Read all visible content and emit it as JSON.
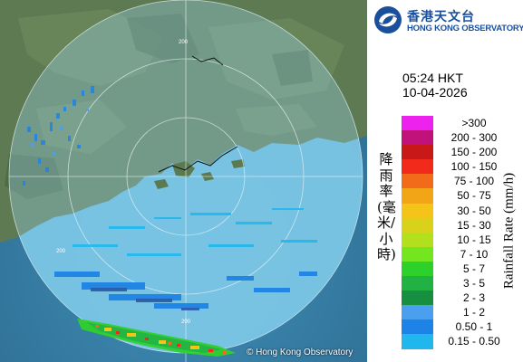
{
  "header": {
    "logo": {
      "emblem_icon": "hko-swirl-emblem",
      "name_zh": "香港天文台",
      "name_en": "HONG KONG OBSERVATORY"
    }
  },
  "timestamp": {
    "time": "05:24 HKT",
    "date": "10-04-2026"
  },
  "map": {
    "range_ring_label": "200",
    "credit": "© Hong Kong Observatory",
    "colors": {
      "sea": "#3b7fa6",
      "land": "#5d7a52",
      "radar_coverage": "#7cc8e8"
    }
  },
  "legend": {
    "title_zh": "降雨率(毫米/小時)",
    "title_en": "Rainfall Rate (mm/h)",
    "bins": [
      {
        "label": ">300",
        "color": "#ee22ee"
      },
      {
        "label": "200 - 300",
        "color": "#c0127a"
      },
      {
        "label": "150 - 200",
        "color": "#c81818"
      },
      {
        "label": "100 - 150",
        "color": "#f22a1c"
      },
      {
        "label": "75 - 100",
        "color": "#f26b1a"
      },
      {
        "label": "50 - 75",
        "color": "#f2a516"
      },
      {
        "label": "30 - 50",
        "color": "#f4c418"
      },
      {
        "label": "15 - 30",
        "color": "#d8d21a"
      },
      {
        "label": "10 - 15",
        "color": "#b2e01c"
      },
      {
        "label": "7 - 10",
        "color": "#74e620"
      },
      {
        "label": "5 - 7",
        "color": "#2ed12a"
      },
      {
        "label": "3 - 5",
        "color": "#22b244"
      },
      {
        "label": "2 - 3",
        "color": "#178f40"
      },
      {
        "label": "1 - 2",
        "color": "#4aa0ee"
      },
      {
        "label": "0.50 - 1",
        "color": "#1e83e6"
      },
      {
        "label": "0.15 - 0.50",
        "color": "#20b8ec"
      }
    ]
  }
}
